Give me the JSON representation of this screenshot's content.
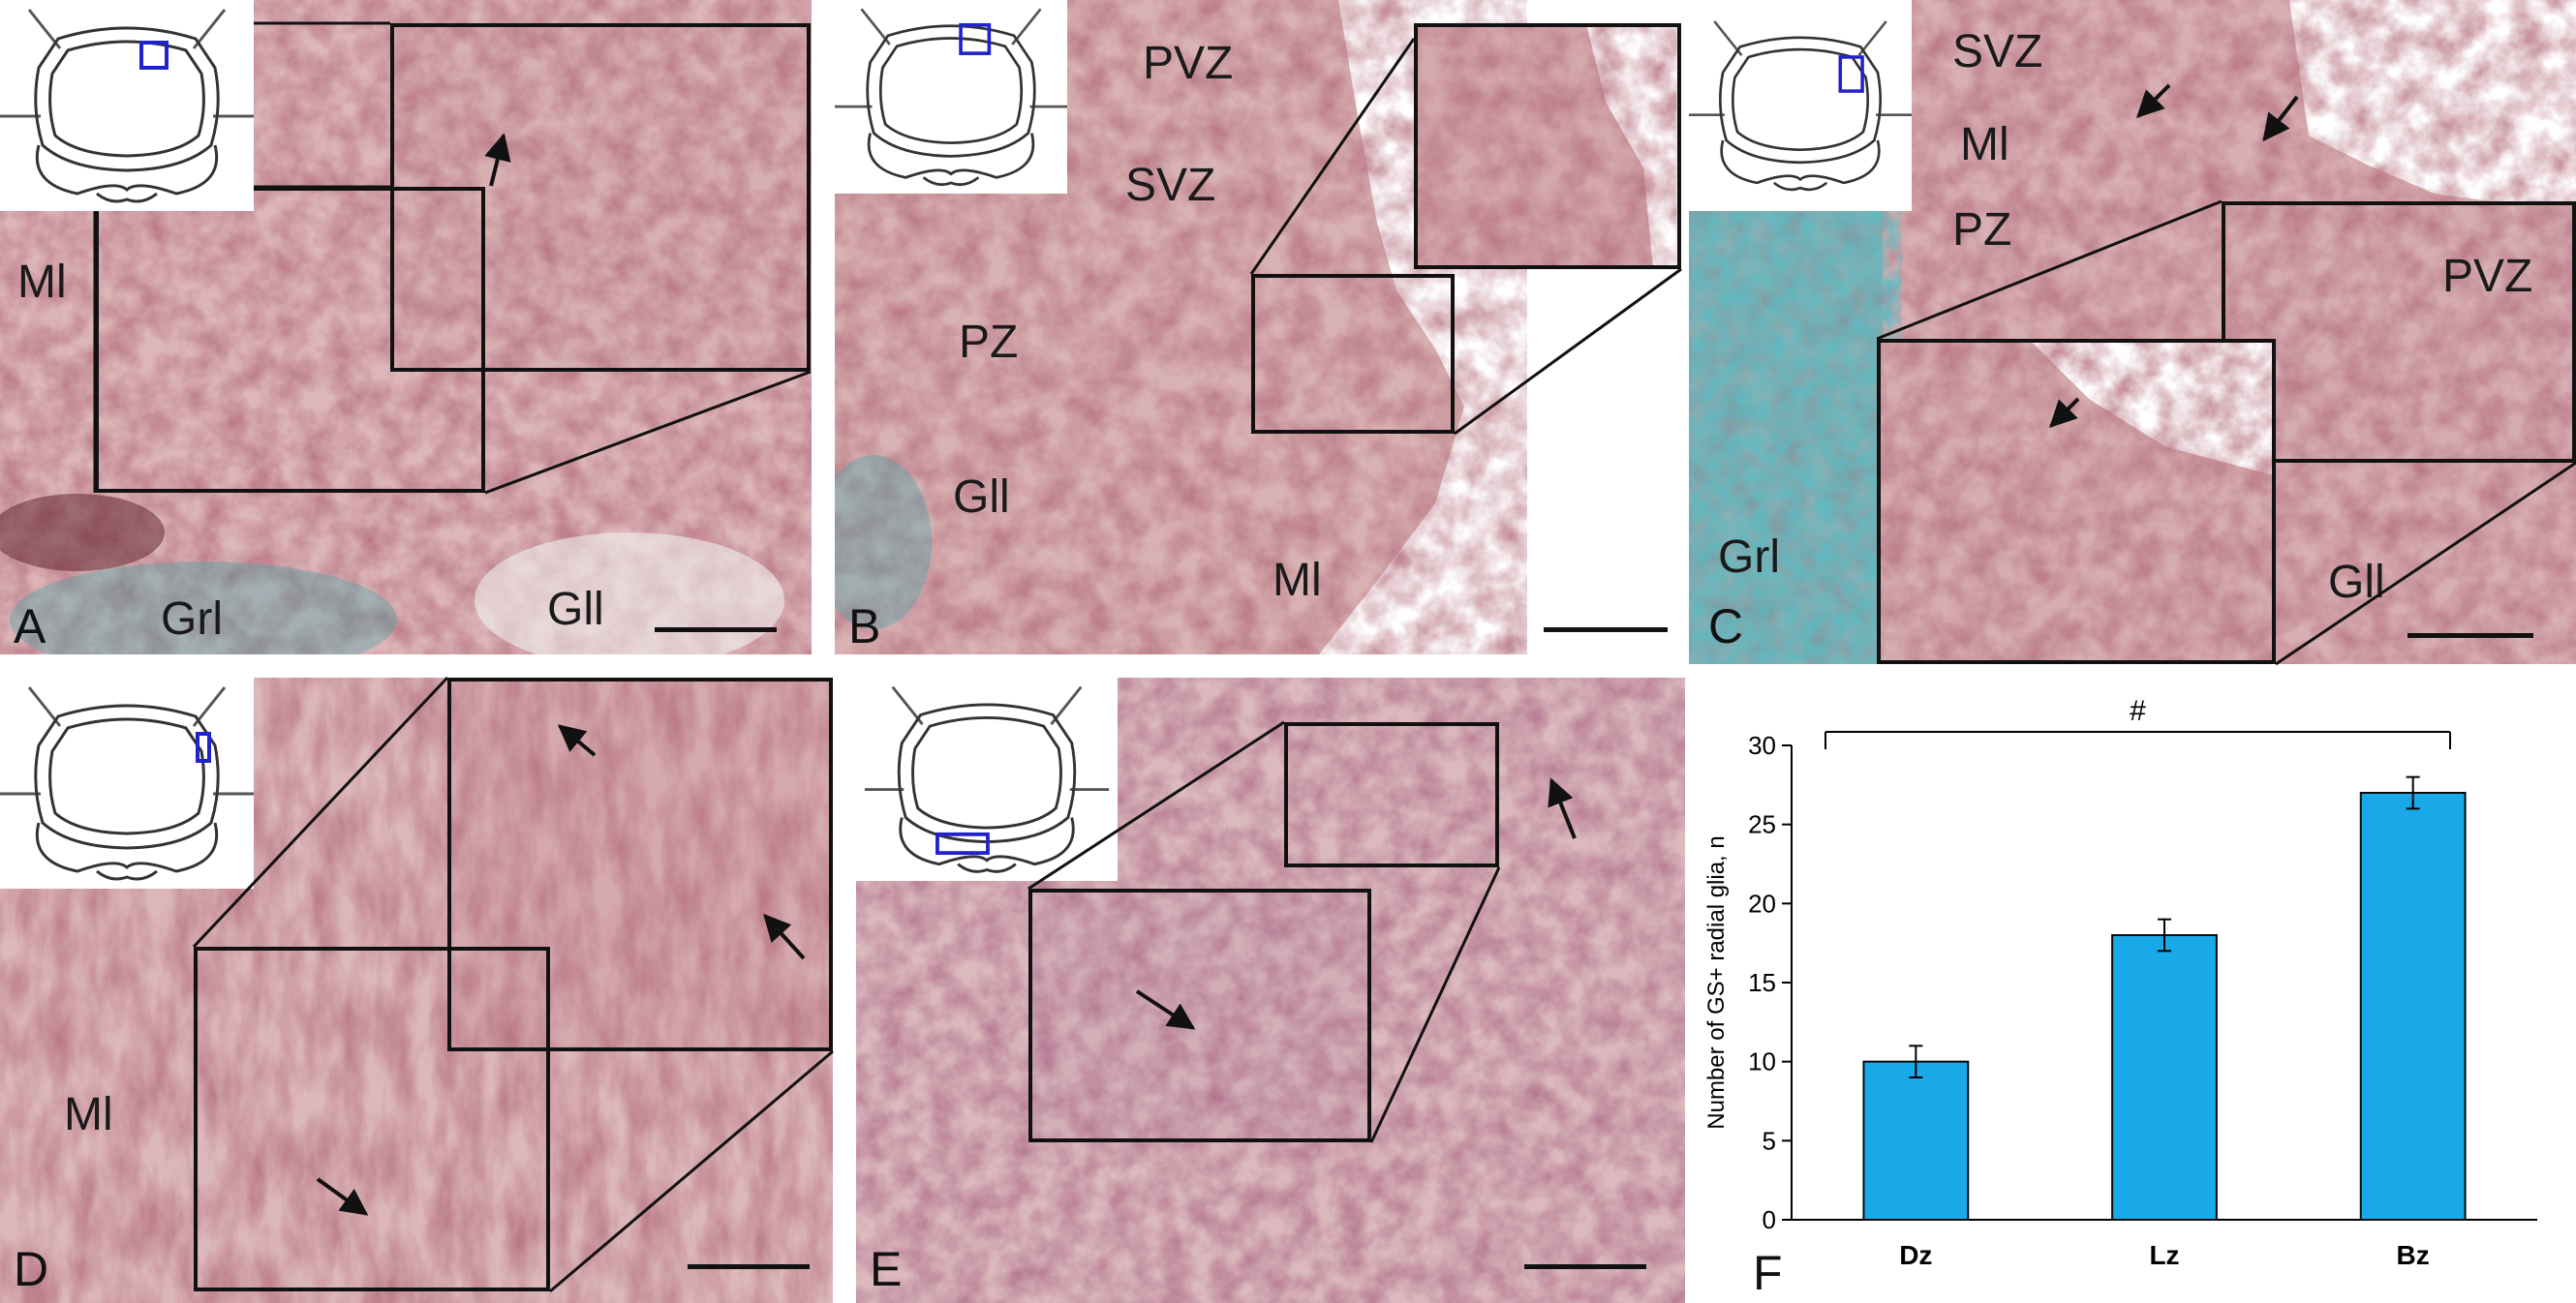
{
  "colors": {
    "tissue_base": "#d9b0b0",
    "tissue_dark": "#6a2a34",
    "granular_stain": "#3aa3a6",
    "bar_fill": "#1aa9e8",
    "bar_stroke": "#0a0a0a",
    "marker_box": "#2222cc"
  },
  "panels": {
    "A": {
      "letter": "A",
      "labels": {
        "ml": "Ml",
        "grl": "Grl",
        "gll": "Gll"
      }
    },
    "B": {
      "letter": "B",
      "labels": {
        "pvz": "PVZ",
        "svz": "SVZ",
        "pz": "PZ",
        "gll": "Gll",
        "ml": "Ml"
      }
    },
    "C": {
      "letter": "C",
      "labels": {
        "svz": "SVZ",
        "ml": "Ml",
        "pz": "PZ",
        "pvz": "PVZ",
        "grl": "Grl",
        "gll": "Gll"
      }
    },
    "D": {
      "letter": "D",
      "labels": {
        "ml": "Ml"
      }
    },
    "E": {
      "letter": "E"
    },
    "F": {
      "letter": "F"
    }
  },
  "chart_data": {
    "type": "bar",
    "categories": [
      "Dz",
      "Lz",
      "Bz"
    ],
    "values": [
      10,
      18,
      27
    ],
    "errors": [
      1,
      1,
      1
    ],
    "ylabel": "Number of GS+ radial glia, n",
    "ylim": [
      0,
      30
    ],
    "yticks": [
      0,
      5,
      10,
      15,
      20,
      25,
      30
    ],
    "significance_label": "#",
    "grid": false
  }
}
